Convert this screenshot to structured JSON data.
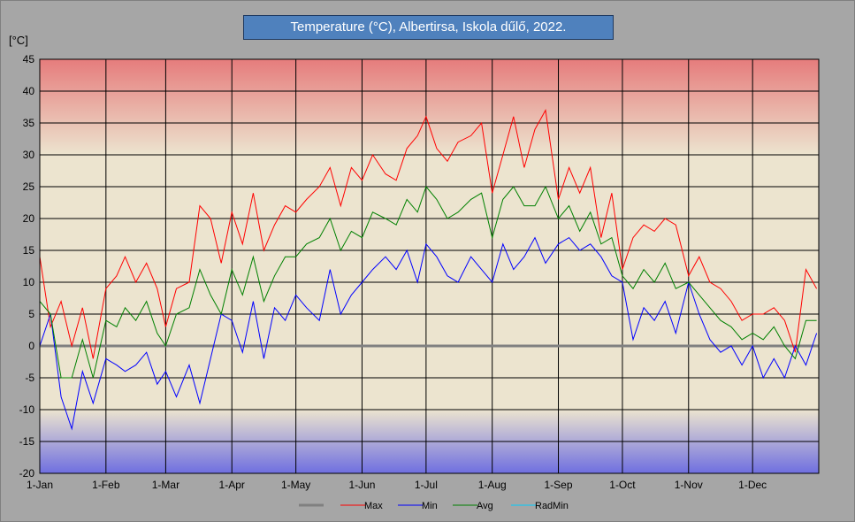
{
  "chart_data": {
    "type": "line",
    "title": "Temperature (°C), Albertirsa, Iskola dűlő, 2022.",
    "ylabel": "[°C]",
    "ylim": [
      -20,
      45
    ],
    "yticks": [
      45,
      40,
      35,
      30,
      25,
      20,
      15,
      10,
      5,
      0,
      -5,
      -10,
      -15,
      -20
    ],
    "xticks": [
      "1-Jan",
      "1-Feb",
      "1-Mar",
      "1-Apr",
      "1-May",
      "1-Jun",
      "1-Jul",
      "1-Aug",
      "1-Sep",
      "1-Oct",
      "1-Nov",
      "1-Dec"
    ],
    "xtick_days": [
      0,
      31,
      59,
      90,
      120,
      151,
      181,
      212,
      243,
      273,
      304,
      334
    ],
    "days_in_year": 365,
    "grid": true,
    "legend_position": "bottom",
    "background_bands": {
      "hot_color": "#e67c7c",
      "neutral_color": "#ece4cf",
      "cold_color": "#6f6fe0"
    },
    "series": [
      {
        "name": "",
        "color": "#808080",
        "values_note": "",
        "x": [
          0,
          365
        ],
        "values": [
          0,
          0
        ]
      },
      {
        "name": "Max",
        "color": "#ff0000",
        "x": [
          0,
          5,
          10,
          15,
          20,
          25,
          31,
          36,
          40,
          45,
          50,
          55,
          59,
          64,
          70,
          75,
          80,
          85,
          90,
          95,
          100,
          105,
          110,
          115,
          120,
          125,
          131,
          136,
          141,
          146,
          151,
          156,
          162,
          167,
          172,
          177,
          181,
          186,
          191,
          196,
          202,
          207,
          212,
          217,
          222,
          227,
          232,
          237,
          243,
          248,
          253,
          258,
          263,
          268,
          273,
          278,
          283,
          288,
          293,
          298,
          304,
          309,
          314,
          319,
          324,
          329,
          334,
          339,
          344,
          349,
          354,
          359,
          364
        ],
        "values": [
          14,
          3,
          7,
          0,
          6,
          -2,
          9,
          11,
          14,
          10,
          13,
          9,
          3,
          9,
          10,
          22,
          20,
          13,
          21,
          16,
          24,
          15,
          19,
          22,
          21,
          23,
          25,
          28,
          22,
          28,
          26,
          30,
          27,
          26,
          31,
          33,
          36,
          31,
          29,
          32,
          33,
          35,
          24,
          30,
          36,
          28,
          34,
          37,
          23,
          28,
          24,
          28,
          17,
          24,
          12,
          17,
          19,
          18,
          20,
          19,
          11,
          14,
          10,
          9,
          7,
          4,
          5,
          5,
          6,
          4,
          -1,
          12,
          9
        ]
      },
      {
        "name": "Min",
        "color": "#0000ff",
        "x": [
          0,
          5,
          10,
          15,
          20,
          25,
          31,
          36,
          40,
          45,
          50,
          55,
          59,
          64,
          70,
          75,
          80,
          85,
          90,
          95,
          100,
          105,
          110,
          115,
          120,
          125,
          131,
          136,
          141,
          146,
          151,
          156,
          162,
          167,
          172,
          177,
          181,
          186,
          191,
          196,
          202,
          207,
          212,
          217,
          222,
          227,
          232,
          237,
          243,
          248,
          253,
          258,
          263,
          268,
          273,
          278,
          283,
          288,
          293,
          298,
          304,
          309,
          314,
          319,
          324,
          329,
          334,
          339,
          344,
          349,
          354,
          359,
          364
        ],
        "values": [
          0,
          5,
          -8,
          -13,
          -4,
          -9,
          -2,
          -3,
          -4,
          -3,
          -1,
          -6,
          -4,
          -8,
          -3,
          -9,
          -2,
          5,
          4,
          -1,
          7,
          -2,
          6,
          4,
          8,
          6,
          4,
          12,
          5,
          8,
          10,
          12,
          14,
          12,
          15,
          10,
          16,
          14,
          11,
          10,
          14,
          12,
          10,
          16,
          12,
          14,
          17,
          13,
          16,
          17,
          15,
          16,
          14,
          11,
          10,
          1,
          6,
          4,
          7,
          2,
          10,
          5,
          1,
          -1,
          0,
          -3,
          0,
          -5,
          -2,
          -5,
          0,
          -3,
          2
        ]
      },
      {
        "name": "Avg",
        "color": "#008000",
        "x": [
          0,
          5,
          10,
          15,
          20,
          25,
          31,
          36,
          40,
          45,
          50,
          55,
          59,
          64,
          70,
          75,
          80,
          85,
          90,
          95,
          100,
          105,
          110,
          115,
          120,
          125,
          131,
          136,
          141,
          146,
          151,
          156,
          162,
          167,
          172,
          177,
          181,
          186,
          191,
          196,
          202,
          207,
          212,
          217,
          222,
          227,
          232,
          237,
          243,
          248,
          253,
          258,
          263,
          268,
          273,
          278,
          283,
          288,
          293,
          298,
          304,
          309,
          314,
          319,
          324,
          329,
          334,
          339,
          344,
          349,
          354,
          359,
          364
        ],
        "values": [
          7,
          5,
          -5,
          -5,
          1,
          -5,
          4,
          3,
          6,
          4,
          7,
          2,
          0,
          5,
          6,
          12,
          8,
          5,
          12,
          8,
          14,
          7,
          11,
          14,
          14,
          16,
          17,
          20,
          15,
          18,
          17,
          21,
          20,
          19,
          23,
          21,
          25,
          23,
          20,
          21,
          23,
          24,
          17,
          23,
          25,
          22,
          22,
          25,
          20,
          22,
          18,
          21,
          16,
          17,
          11,
          9,
          12,
          10,
          13,
          9,
          10,
          8,
          6,
          4,
          3,
          1,
          2,
          1,
          3,
          0,
          -2,
          4,
          4
        ]
      },
      {
        "name": "RadMin",
        "color": "#00ccff",
        "x": [],
        "values": []
      }
    ]
  }
}
